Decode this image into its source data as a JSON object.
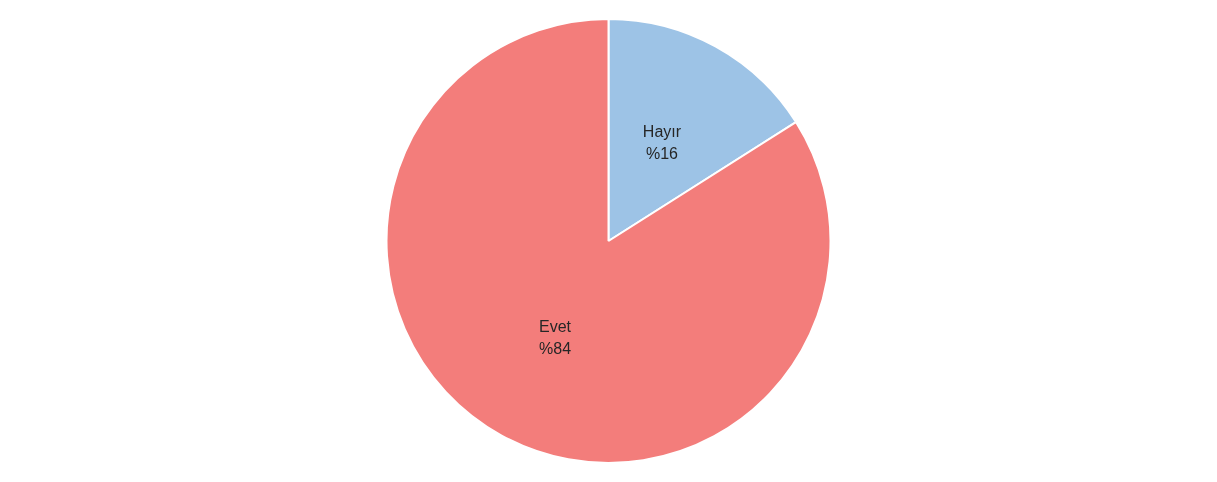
{
  "chart_data": {
    "type": "pie",
    "categories": [
      "Hayır",
      "Evet"
    ],
    "values": [
      16,
      84
    ],
    "colors": [
      "#9dc3e6",
      "#f37d7b"
    ],
    "value_labels": [
      "%16",
      "%84"
    ],
    "legend": false
  }
}
